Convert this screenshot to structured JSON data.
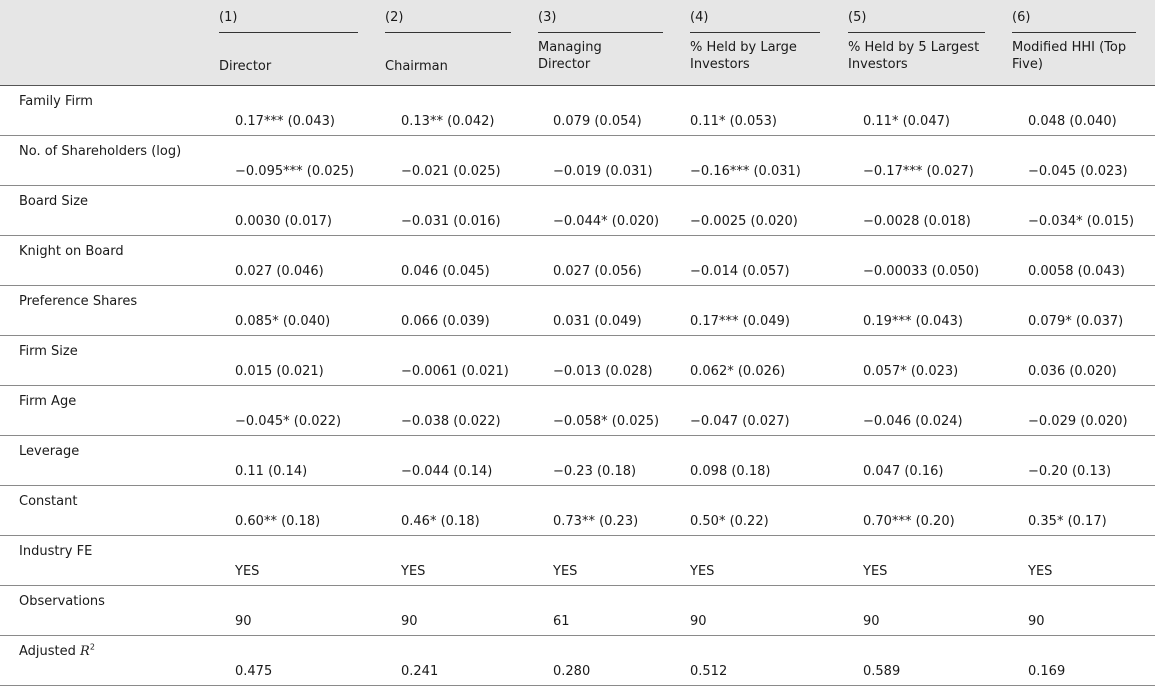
{
  "columns": [
    {
      "num": "(1)",
      "title": "Director"
    },
    {
      "num": "(2)",
      "title": "Chairman"
    },
    {
      "num": "(3)",
      "title": "Managing Director"
    },
    {
      "num": "(4)",
      "title": "% Held by Large Investors"
    },
    {
      "num": "(5)",
      "title": "% Held by 5 Largest Investors"
    },
    {
      "num": "(6)",
      "title": "Modified HHI (Top Five)"
    }
  ],
  "rows": [
    {
      "label": "Family Firm",
      "cells": [
        "0.17*** (0.043)",
        "0.13** (0.042)",
        "0.079 (0.054)",
        "0.11* (0.053)",
        "0.11* (0.047)",
        "0.048 (0.040)"
      ]
    },
    {
      "label": "No. of Shareholders (log)",
      "cells": [
        "−0.095*** (0.025)",
        "−0.021 (0.025)",
        "−0.019 (0.031)",
        "−0.16*** (0.031)",
        "−0.17*** (0.027)",
        "−0.045 (0.023)"
      ]
    },
    {
      "label": "Board Size",
      "cells": [
        "0.0030 (0.017)",
        "−0.031 (0.016)",
        "−0.044* (0.020)",
        "−0.0025 (0.020)",
        "−0.0028 (0.018)",
        "−0.034* (0.015)"
      ]
    },
    {
      "label": "Knight on Board",
      "cells": [
        "0.027 (0.046)",
        "0.046 (0.045)",
        "0.027 (0.056)",
        "−0.014 (0.057)",
        "−0.00033 (0.050)",
        "0.0058 (0.043)"
      ]
    },
    {
      "label": "Preference Shares",
      "cells": [
        "0.085* (0.040)",
        "0.066 (0.039)",
        "0.031 (0.049)",
        "0.17*** (0.049)",
        "0.19*** (0.043)",
        "0.079* (0.037)"
      ]
    },
    {
      "label": "Firm Size",
      "cells": [
        "0.015 (0.021)",
        "−0.0061 (0.021)",
        "−0.013 (0.028)",
        "0.062* (0.026)",
        "0.057* (0.023)",
        "0.036 (0.020)"
      ]
    },
    {
      "label": "Firm Age",
      "cells": [
        "−0.045* (0.022)",
        "−0.038 (0.022)",
        "−0.058* (0.025)",
        "−0.047 (0.027)",
        "−0.046 (0.024)",
        "−0.029 (0.020)"
      ]
    },
    {
      "label": "Leverage",
      "cells": [
        "0.11 (0.14)",
        "−0.044 (0.14)",
        "−0.23 (0.18)",
        "0.098 (0.18)",
        "0.047 (0.16)",
        "−0.20 (0.13)"
      ]
    },
    {
      "label": "Constant",
      "cells": [
        "0.60** (0.18)",
        "0.46* (0.18)",
        "0.73** (0.23)",
        "0.50* (0.22)",
        "0.70*** (0.20)",
        "0.35* (0.17)"
      ]
    },
    {
      "label": "Industry FE",
      "cells": [
        "YES",
        "YES",
        "YES",
        "YES",
        "YES",
        "YES"
      ]
    },
    {
      "label": "Observations",
      "cells": [
        "90",
        "90",
        "61",
        "90",
        "90",
        "90"
      ]
    },
    {
      "label": "Adjusted R",
      "label_sup": "2",
      "cells": [
        "0.475",
        "0.241",
        "0.280",
        "0.512",
        "0.589",
        "0.169"
      ]
    }
  ]
}
